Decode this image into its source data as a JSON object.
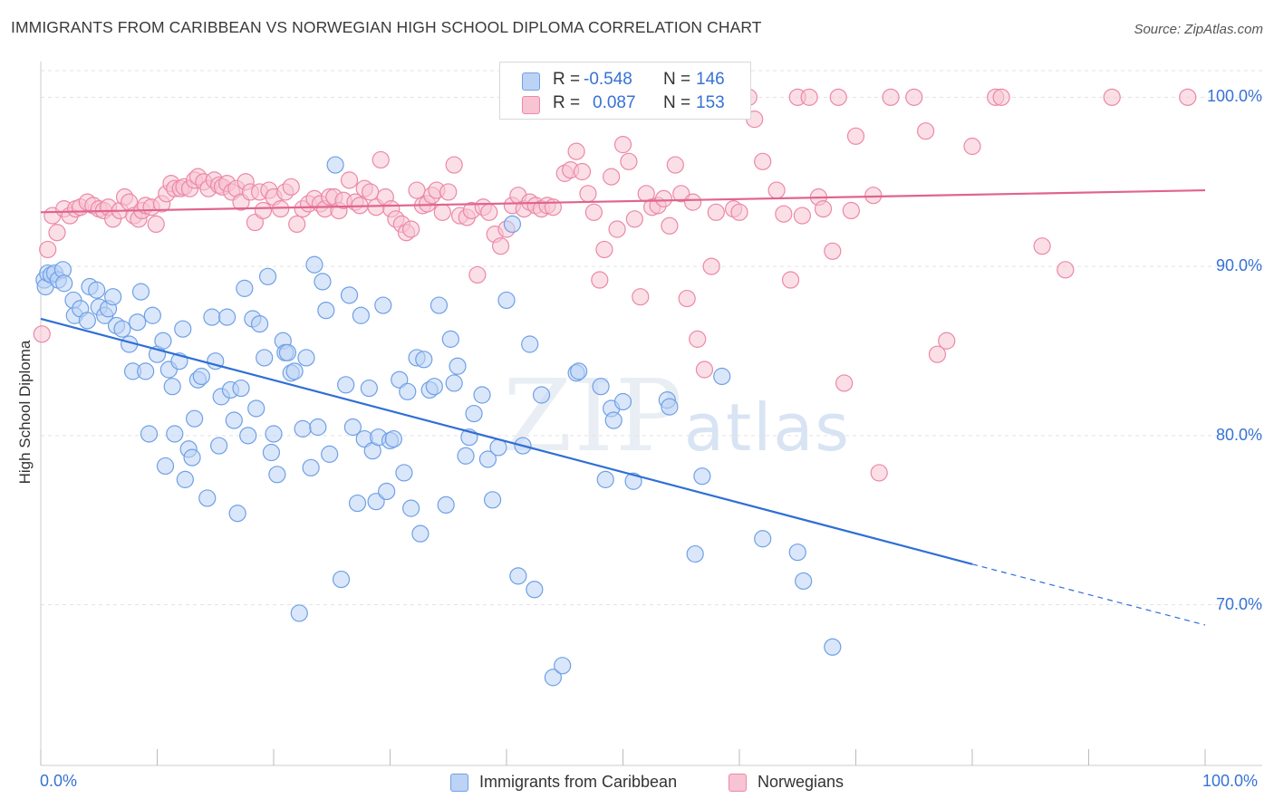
{
  "title": "IMMIGRANTS FROM CARIBBEAN VS NORWEGIAN HIGH SCHOOL DIPLOMA CORRELATION CHART",
  "source": "Source: ZipAtlas.com",
  "watermark": {
    "zip": "ZIP",
    "atlas": "atlas"
  },
  "colors": {
    "blue": "#6fa0e6",
    "blue_fill": "#bcd3f5",
    "blue_line": "#2f6fd6",
    "pink": "#ec88a8",
    "pink_fill": "#f7c4d4",
    "pink_line": "#e0648e",
    "axis_text": "#3672d6",
    "grid": "#e3e3e3"
  },
  "legend": {
    "r_label": "R =",
    "n_label": "N =",
    "blue": {
      "r": "-0.548",
      "n": "146"
    },
    "pink": {
      "r": "0.087",
      "n": "153"
    }
  },
  "bottom_legend": {
    "blue": "Immigrants from Caribbean",
    "pink": "Norwegians"
  },
  "chart_data": {
    "type": "scatter",
    "title": "IMMIGRANTS FROM CARIBBEAN VS NORWEGIAN HIGH SCHOOL DIPLOMA CORRELATION CHART",
    "xlabel": "",
    "ylabel": "High School Diploma",
    "xlim": [
      0,
      100
    ],
    "ylim": [
      60.5,
      102
    ],
    "x_tick_labels": [
      "0.0%",
      "100.0%"
    ],
    "y_ticks": [
      70,
      80,
      90,
      100
    ],
    "y_tick_labels": [
      "70.0%",
      "80.0%",
      "90.0%",
      "100.0%"
    ],
    "grid": true,
    "legend_placement": "top-center",
    "series": [
      {
        "name": "Immigrants from Caribbean",
        "color": "#6fa0e6",
        "r": -0.548,
        "n": 146,
        "trend": {
          "x0": 0,
          "y0": 86.9,
          "x1": 80,
          "y1": 72.4,
          "dashed_to_x": 100,
          "dashed_to_y": 68.8
        },
        "points": [
          [
            0.3,
            89.2
          ],
          [
            0.4,
            88.8
          ],
          [
            0.6,
            89.6
          ],
          [
            0.9,
            89.5
          ],
          [
            1.2,
            89.6
          ],
          [
            1.5,
            89.2
          ],
          [
            1.9,
            89.8
          ],
          [
            2.0,
            89.0
          ],
          [
            2.8,
            88.0
          ],
          [
            2.9,
            87.1
          ],
          [
            3.4,
            87.5
          ],
          [
            4.0,
            86.8
          ],
          [
            4.2,
            88.8
          ],
          [
            4.8,
            88.6
          ],
          [
            5.0,
            87.6
          ],
          [
            5.5,
            87.1
          ],
          [
            5.8,
            87.5
          ],
          [
            6.2,
            88.2
          ],
          [
            6.5,
            86.5
          ],
          [
            7.0,
            86.3
          ],
          [
            7.6,
            85.4
          ],
          [
            7.9,
            83.8
          ],
          [
            8.3,
            86.7
          ],
          [
            8.6,
            88.5
          ],
          [
            9.0,
            83.8
          ],
          [
            9.3,
            80.1
          ],
          [
            9.6,
            87.1
          ],
          [
            10.0,
            84.8
          ],
          [
            10.5,
            85.6
          ],
          [
            10.7,
            78.2
          ],
          [
            11.0,
            83.9
          ],
          [
            11.3,
            82.9
          ],
          [
            11.5,
            80.1
          ],
          [
            11.9,
            84.4
          ],
          [
            12.2,
            86.3
          ],
          [
            12.4,
            77.4
          ],
          [
            12.7,
            79.2
          ],
          [
            13.0,
            78.7
          ],
          [
            13.2,
            81.0
          ],
          [
            13.5,
            83.3
          ],
          [
            13.8,
            83.5
          ],
          [
            14.3,
            76.3
          ],
          [
            14.7,
            87.0
          ],
          [
            15.0,
            84.4
          ],
          [
            15.3,
            79.4
          ],
          [
            15.5,
            82.3
          ],
          [
            16.0,
            87.0
          ],
          [
            16.3,
            82.7
          ],
          [
            16.6,
            80.9
          ],
          [
            16.9,
            75.4
          ],
          [
            17.2,
            82.8
          ],
          [
            17.5,
            88.7
          ],
          [
            17.8,
            80.0
          ],
          [
            18.2,
            86.9
          ],
          [
            18.5,
            81.6
          ],
          [
            18.8,
            86.6
          ],
          [
            19.2,
            84.6
          ],
          [
            19.5,
            89.4
          ],
          [
            19.8,
            79.0
          ],
          [
            20.0,
            80.1
          ],
          [
            20.3,
            77.7
          ],
          [
            20.8,
            85.6
          ],
          [
            21.0,
            84.9
          ],
          [
            21.2,
            84.9
          ],
          [
            21.5,
            83.7
          ],
          [
            21.8,
            83.8
          ],
          [
            22.2,
            69.5
          ],
          [
            22.5,
            80.4
          ],
          [
            22.8,
            84.6
          ],
          [
            23.2,
            78.1
          ],
          [
            23.5,
            90.1
          ],
          [
            23.8,
            80.5
          ],
          [
            24.2,
            89.1
          ],
          [
            24.5,
            87.4
          ],
          [
            24.8,
            78.9
          ],
          [
            25.3,
            96.0
          ],
          [
            25.8,
            71.5
          ],
          [
            26.2,
            83.0
          ],
          [
            26.5,
            88.3
          ],
          [
            26.8,
            80.5
          ],
          [
            27.2,
            76.0
          ],
          [
            27.5,
            87.1
          ],
          [
            27.8,
            79.8
          ],
          [
            28.2,
            82.8
          ],
          [
            28.5,
            79.1
          ],
          [
            28.8,
            76.1
          ],
          [
            29.0,
            79.9
          ],
          [
            29.4,
            87.7
          ],
          [
            29.7,
            76.7
          ],
          [
            30.0,
            79.7
          ],
          [
            30.3,
            79.8
          ],
          [
            30.8,
            83.3
          ],
          [
            31.2,
            77.8
          ],
          [
            31.5,
            82.6
          ],
          [
            31.8,
            75.7
          ],
          [
            32.3,
            84.6
          ],
          [
            32.6,
            74.2
          ],
          [
            32.9,
            84.5
          ],
          [
            33.4,
            82.7
          ],
          [
            33.8,
            82.9
          ],
          [
            34.2,
            87.7
          ],
          [
            34.8,
            75.9
          ],
          [
            35.2,
            85.7
          ],
          [
            35.5,
            83.1
          ],
          [
            35.8,
            84.1
          ],
          [
            36.5,
            78.8
          ],
          [
            36.8,
            79.9
          ],
          [
            37.2,
            81.3
          ],
          [
            37.9,
            82.4
          ],
          [
            38.4,
            78.6
          ],
          [
            38.8,
            76.2
          ],
          [
            39.3,
            79.3
          ],
          [
            40.0,
            88.0
          ],
          [
            40.5,
            92.5
          ],
          [
            41.0,
            71.7
          ],
          [
            41.4,
            79.4
          ],
          [
            42.0,
            85.4
          ],
          [
            42.4,
            70.9
          ],
          [
            43.0,
            82.4
          ],
          [
            44.0,
            65.7
          ],
          [
            44.8,
            66.4
          ],
          [
            46.0,
            83.7
          ],
          [
            46.2,
            83.8
          ],
          [
            48.1,
            82.9
          ],
          [
            48.5,
            77.4
          ],
          [
            49.0,
            81.6
          ],
          [
            49.2,
            80.9
          ],
          [
            50.0,
            82.0
          ],
          [
            50.9,
            77.3
          ],
          [
            53.8,
            82.1
          ],
          [
            54.0,
            81.7
          ],
          [
            56.2,
            73.0
          ],
          [
            56.8,
            77.6
          ],
          [
            58.5,
            83.5
          ],
          [
            62.0,
            73.9
          ],
          [
            65.0,
            73.1
          ],
          [
            65.5,
            71.4
          ],
          [
            68.0,
            67.5
          ]
        ]
      },
      {
        "name": "Norwegians",
        "color": "#ec88a8",
        "r": 0.087,
        "n": 153,
        "trend": {
          "x0": 0,
          "y0": 93.2,
          "x1": 100,
          "y1": 94.5
        },
        "points": [
          [
            0.1,
            86.0
          ],
          [
            0.6,
            91.0
          ],
          [
            1.0,
            93.0
          ],
          [
            1.4,
            92.0
          ],
          [
            2.0,
            93.4
          ],
          [
            2.5,
            93.0
          ],
          [
            3.0,
            93.4
          ],
          [
            3.4,
            93.5
          ],
          [
            4.0,
            93.8
          ],
          [
            4.5,
            93.6
          ],
          [
            5.0,
            93.4
          ],
          [
            5.4,
            93.3
          ],
          [
            5.8,
            93.5
          ],
          [
            6.2,
            92.8
          ],
          [
            6.8,
            93.3
          ],
          [
            7.2,
            94.1
          ],
          [
            7.6,
            93.8
          ],
          [
            8.0,
            93.0
          ],
          [
            8.4,
            92.8
          ],
          [
            8.7,
            93.3
          ],
          [
            9.0,
            93.6
          ],
          [
            9.5,
            93.5
          ],
          [
            9.9,
            92.5
          ],
          [
            10.4,
            93.7
          ],
          [
            10.8,
            94.3
          ],
          [
            11.2,
            94.9
          ],
          [
            11.5,
            94.6
          ],
          [
            12.0,
            94.6
          ],
          [
            12.3,
            94.7
          ],
          [
            12.8,
            94.6
          ],
          [
            13.2,
            95.1
          ],
          [
            13.5,
            95.3
          ],
          [
            14.0,
            95.0
          ],
          [
            14.4,
            94.6
          ],
          [
            14.9,
            95.1
          ],
          [
            15.3,
            94.8
          ],
          [
            15.6,
            94.7
          ],
          [
            16.0,
            94.9
          ],
          [
            16.4,
            94.4
          ],
          [
            16.8,
            94.6
          ],
          [
            17.2,
            93.8
          ],
          [
            17.6,
            95.0
          ],
          [
            18.0,
            94.4
          ],
          [
            18.4,
            92.6
          ],
          [
            18.8,
            94.4
          ],
          [
            19.1,
            93.3
          ],
          [
            19.6,
            94.5
          ],
          [
            20.0,
            94.1
          ],
          [
            20.6,
            93.4
          ],
          [
            21.0,
            94.4
          ],
          [
            21.5,
            94.7
          ],
          [
            22.0,
            92.5
          ],
          [
            22.5,
            93.4
          ],
          [
            23.0,
            93.7
          ],
          [
            23.5,
            94.0
          ],
          [
            24.0,
            93.7
          ],
          [
            24.4,
            93.4
          ],
          [
            24.8,
            94.1
          ],
          [
            25.2,
            94.1
          ],
          [
            25.6,
            93.3
          ],
          [
            26.0,
            93.9
          ],
          [
            26.5,
            95.1
          ],
          [
            27.0,
            93.8
          ],
          [
            27.4,
            93.6
          ],
          [
            27.8,
            94.6
          ],
          [
            28.3,
            94.4
          ],
          [
            28.8,
            93.5
          ],
          [
            29.2,
            96.3
          ],
          [
            29.6,
            94.1
          ],
          [
            30.1,
            93.4
          ],
          [
            30.5,
            92.8
          ],
          [
            31.0,
            92.5
          ],
          [
            31.4,
            92.0
          ],
          [
            31.8,
            92.2
          ],
          [
            32.3,
            94.5
          ],
          [
            32.8,
            93.6
          ],
          [
            33.2,
            93.7
          ],
          [
            33.6,
            94.2
          ],
          [
            34.0,
            94.5
          ],
          [
            34.5,
            93.2
          ],
          [
            35.0,
            94.4
          ],
          [
            35.5,
            96.0
          ],
          [
            36.0,
            93.0
          ],
          [
            36.6,
            92.9
          ],
          [
            37.0,
            93.3
          ],
          [
            37.5,
            89.5
          ],
          [
            38.0,
            93.5
          ],
          [
            38.5,
            93.2
          ],
          [
            39.0,
            91.9
          ],
          [
            39.5,
            91.2
          ],
          [
            40.0,
            92.2
          ],
          [
            40.5,
            93.6
          ],
          [
            41.0,
            94.2
          ],
          [
            41.5,
            93.4
          ],
          [
            42.0,
            93.8
          ],
          [
            42.5,
            93.6
          ],
          [
            43.0,
            93.4
          ],
          [
            43.5,
            93.6
          ],
          [
            44.0,
            93.5
          ],
          [
            45.0,
            95.5
          ],
          [
            45.5,
            95.7
          ],
          [
            46.0,
            96.8
          ],
          [
            46.5,
            95.6
          ],
          [
            47.0,
            94.3
          ],
          [
            47.5,
            93.2
          ],
          [
            48.0,
            89.2
          ],
          [
            48.4,
            91.0
          ],
          [
            49.0,
            95.3
          ],
          [
            49.5,
            92.2
          ],
          [
            50.0,
            97.2
          ],
          [
            50.5,
            96.2
          ],
          [
            51.0,
            92.8
          ],
          [
            51.5,
            88.2
          ],
          [
            52.0,
            94.3
          ],
          [
            52.5,
            93.5
          ],
          [
            53.0,
            93.6
          ],
          [
            53.5,
            94.0
          ],
          [
            54.0,
            92.4
          ],
          [
            54.5,
            96.0
          ],
          [
            55.0,
            94.3
          ],
          [
            55.5,
            88.1
          ],
          [
            56.0,
            93.8
          ],
          [
            56.4,
            85.7
          ],
          [
            57.0,
            83.9
          ],
          [
            57.6,
            90.0
          ],
          [
            58.0,
            93.2
          ],
          [
            58.7,
            100.0
          ],
          [
            59.5,
            93.4
          ],
          [
            60.0,
            93.2
          ],
          [
            60.8,
            100.0
          ],
          [
            61.3,
            98.7
          ],
          [
            62.0,
            96.2
          ],
          [
            63.2,
            94.5
          ],
          [
            63.8,
            93.1
          ],
          [
            64.4,
            89.2
          ],
          [
            65.0,
            100.0
          ],
          [
            65.4,
            93.0
          ],
          [
            66.0,
            100.0
          ],
          [
            66.8,
            94.1
          ],
          [
            67.2,
            93.4
          ],
          [
            68.0,
            90.9
          ],
          [
            68.5,
            100.0
          ],
          [
            69.0,
            83.1
          ],
          [
            69.6,
            93.3
          ],
          [
            70.0,
            97.7
          ],
          [
            71.5,
            94.2
          ],
          [
            72.0,
            77.8
          ],
          [
            73.0,
            100.0
          ],
          [
            76.0,
            98.0
          ],
          [
            77.0,
            84.8
          ],
          [
            77.8,
            85.6
          ],
          [
            80.0,
            97.1
          ],
          [
            82.0,
            100.0
          ],
          [
            82.5,
            100.0
          ],
          [
            86.0,
            91.2
          ],
          [
            88.0,
            89.8
          ],
          [
            92.0,
            100.0
          ],
          [
            98.5,
            100.0
          ],
          [
            75.0,
            100.0
          ]
        ]
      }
    ]
  }
}
